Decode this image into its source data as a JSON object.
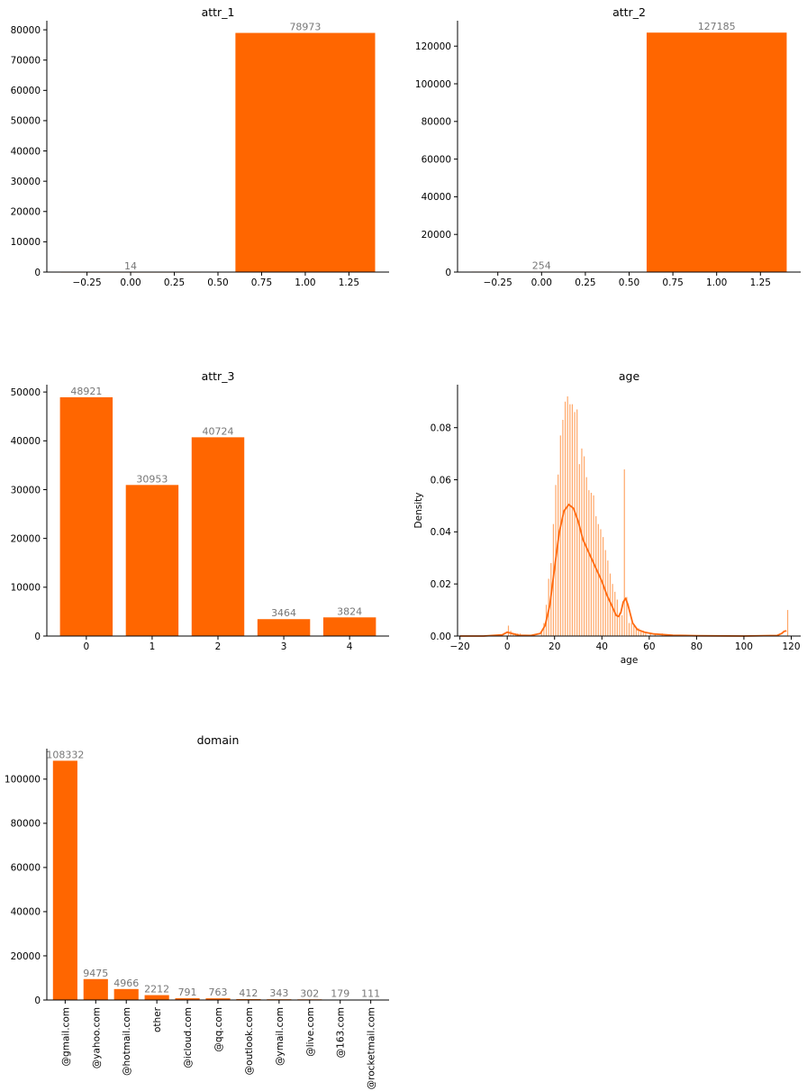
{
  "colors": {
    "bar": "#ff6600",
    "hist": "#ffa768",
    "kde": "#ff6a10",
    "data_label": "#777777",
    "axis": "#000000"
  },
  "chart_data": [
    {
      "type": "bar",
      "title": "attr_1",
      "x": [
        0,
        1
      ],
      "values": [
        14,
        78973
      ],
      "data_labels": [
        "14",
        "78973"
      ],
      "bar_width": 0.8,
      "xlim": [
        -0.48,
        1.48
      ],
      "ylim": [
        0,
        83000
      ],
      "xticks": [
        -0.25,
        0.0,
        0.25,
        0.5,
        0.75,
        1.0,
        1.25
      ],
      "xtick_labels": [
        "−0.25",
        "0.00",
        "0.25",
        "0.50",
        "0.75",
        "1.00",
        "1.25"
      ],
      "yticks": [
        0,
        10000,
        20000,
        30000,
        40000,
        50000,
        60000,
        70000,
        80000
      ],
      "ytick_labels": [
        "0",
        "10000",
        "20000",
        "30000",
        "40000",
        "50000",
        "60000",
        "70000",
        "80000"
      ],
      "xlabel": "",
      "ylabel": "",
      "grid": false
    },
    {
      "type": "bar",
      "title": "attr_2",
      "x": [
        0,
        1
      ],
      "values": [
        254,
        127185
      ],
      "data_labels": [
        "254",
        "127185"
      ],
      "bar_width": 0.8,
      "xlim": [
        -0.48,
        1.48
      ],
      "ylim": [
        0,
        133500
      ],
      "xticks": [
        -0.25,
        0.0,
        0.25,
        0.5,
        0.75,
        1.0,
        1.25
      ],
      "xtick_labels": [
        "−0.25",
        "0.00",
        "0.25",
        "0.50",
        "0.75",
        "1.00",
        "1.25"
      ],
      "yticks": [
        0,
        20000,
        40000,
        60000,
        80000,
        100000,
        120000
      ],
      "ytick_labels": [
        "0",
        "20000",
        "40000",
        "60000",
        "80000",
        "100000",
        "120000"
      ],
      "xlabel": "",
      "ylabel": "",
      "grid": false
    },
    {
      "type": "bar",
      "title": "attr_3",
      "x": [
        0,
        1,
        2,
        3,
        4
      ],
      "values": [
        48921,
        30953,
        40724,
        3464,
        3824
      ],
      "data_labels": [
        "48921",
        "30953",
        "40724",
        "3464",
        "3824"
      ],
      "bar_width": 0.8,
      "xlim": [
        -0.6,
        4.6
      ],
      "ylim": [
        0,
        51500
      ],
      "xticks": [
        0,
        1,
        2,
        3,
        4
      ],
      "xtick_labels": [
        "0",
        "1",
        "2",
        "3",
        "4"
      ],
      "yticks": [
        0,
        10000,
        20000,
        30000,
        40000,
        50000
      ],
      "ytick_labels": [
        "0",
        "10000",
        "20000",
        "30000",
        "40000",
        "50000"
      ],
      "xlabel": "",
      "ylabel": "",
      "grid": false
    },
    {
      "type": "histogram+kde",
      "title": "age",
      "xlabel": "age",
      "ylabel": "Density",
      "xlim": [
        -21,
        124
      ],
      "ylim": [
        0,
        0.0965
      ],
      "xticks": [
        -20,
        0,
        20,
        40,
        60,
        80,
        100,
        120
      ],
      "xtick_labels": [
        "−20",
        "0",
        "20",
        "40",
        "60",
        "80",
        "100",
        "120"
      ],
      "yticks": [
        0,
        0.02,
        0.04,
        0.06,
        0.08
      ],
      "ytick_labels": [
        "0.00",
        "0.02",
        "0.04",
        "0.06",
        "0.08"
      ],
      "hist": {
        "x": [
          0,
          1,
          2,
          3,
          4,
          5,
          14,
          15,
          16,
          17,
          18,
          19,
          20,
          21,
          22,
          23,
          24,
          25,
          26,
          27,
          28,
          29,
          30,
          31,
          32,
          33,
          34,
          35,
          36,
          37,
          38,
          39,
          40,
          41,
          42,
          43,
          44,
          45,
          46,
          47,
          48,
          49,
          50,
          51,
          52,
          53,
          54,
          55,
          56,
          57,
          58,
          60,
          62,
          65,
          118
        ],
        "density": [
          0.004,
          0.002,
          0.001,
          0.001,
          0.001,
          0.001,
          0.002,
          0.005,
          0.012,
          0.022,
          0.028,
          0.043,
          0.058,
          0.062,
          0.077,
          0.083,
          0.09,
          0.092,
          0.089,
          0.089,
          0.086,
          0.087,
          0.066,
          0.072,
          0.069,
          0.061,
          0.056,
          0.055,
          0.054,
          0.046,
          0.043,
          0.041,
          0.038,
          0.033,
          0.029,
          0.024,
          0.02,
          0.017,
          0.014,
          0.009,
          0.008,
          0.064,
          0.015,
          0.005,
          0.005,
          0.004,
          0.003,
          0.003,
          0.002,
          0.002,
          0.001,
          0.001,
          0.001,
          0.001,
          0.01
        ]
      },
      "kde": {
        "x": [
          -20,
          -10,
          -2,
          0,
          2,
          5,
          10,
          14,
          16,
          18,
          20,
          22,
          24,
          26,
          28,
          30,
          32,
          34,
          36,
          38,
          40,
          42,
          44,
          46,
          47,
          48,
          49,
          50,
          51,
          53,
          55,
          58,
          62,
          70,
          80,
          100,
          114,
          116,
          117,
          118
        ],
        "density": [
          0.0,
          0.0,
          0.0005,
          0.0015,
          0.001,
          0.0003,
          0.0002,
          0.001,
          0.004,
          0.012,
          0.026,
          0.04,
          0.048,
          0.0505,
          0.049,
          0.044,
          0.037,
          0.033,
          0.029,
          0.025,
          0.021,
          0.016,
          0.012,
          0.008,
          0.0075,
          0.009,
          0.013,
          0.0145,
          0.012,
          0.005,
          0.0025,
          0.0015,
          0.0008,
          0.0003,
          0.0001,
          0.0,
          0.0002,
          0.001,
          0.0018,
          0.002
        ]
      },
      "grid": false
    },
    {
      "type": "bar",
      "title": "domain",
      "categories": [
        "@gmail.com",
        "@yahoo.com",
        "@hotmail.com",
        "other",
        "@icloud.com",
        "@qq.com",
        "@outlook.com",
        "@ymail.com",
        "@live.com",
        "@163.com",
        "@rocketmail.com"
      ],
      "values": [
        108332,
        9475,
        4966,
        2212,
        791,
        763,
        412,
        343,
        302,
        179,
        111
      ],
      "data_labels": [
        "108332",
        "9475",
        "4966",
        "2212",
        "791",
        "763",
        "412",
        "343",
        "302",
        "179",
        "111"
      ],
      "bar_width": 0.8,
      "xlim": [
        -0.6,
        10.6
      ],
      "ylim": [
        0,
        113800
      ],
      "yticks": [
        0,
        20000,
        40000,
        60000,
        80000,
        100000
      ],
      "ytick_labels": [
        "0",
        "20000",
        "40000",
        "60000",
        "80000",
        "100000"
      ],
      "xtick_rotation": 90,
      "xlabel": "",
      "ylabel": "",
      "grid": false
    }
  ]
}
